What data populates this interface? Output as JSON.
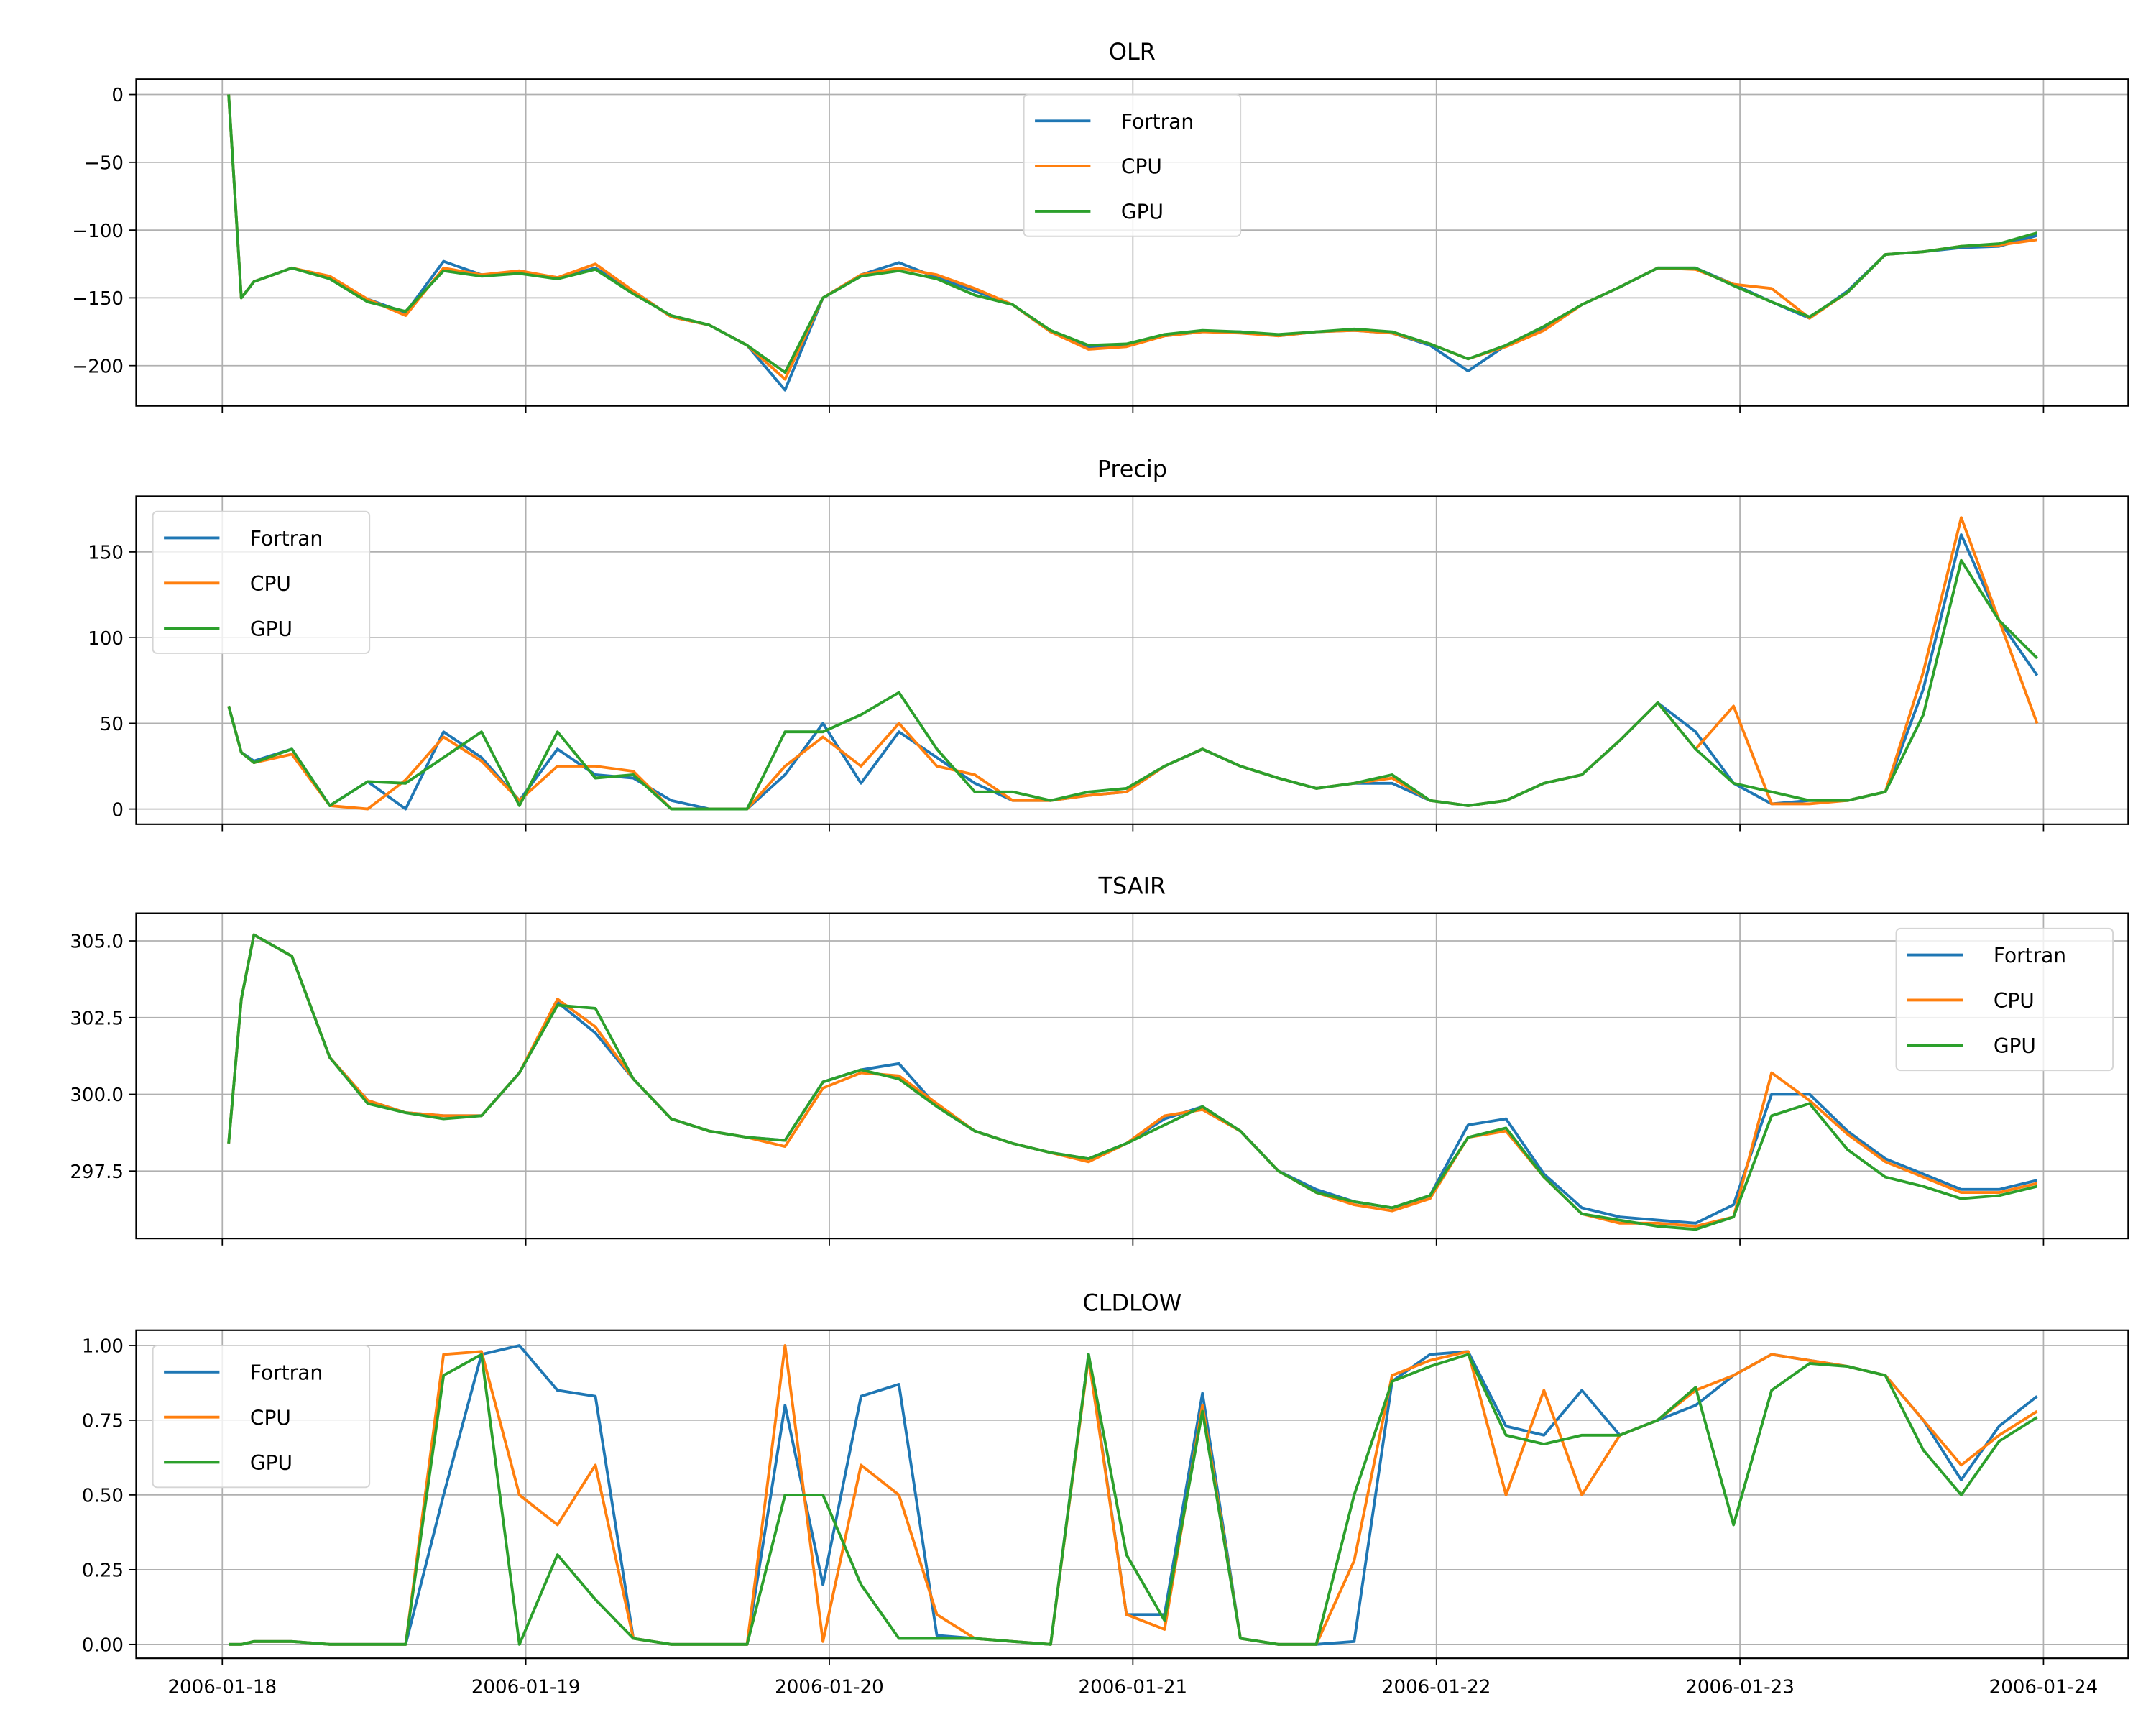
{
  "chart_data": [
    {
      "type": "line",
      "title": "OLR",
      "ylim": [
        -229.7,
        11.3
      ],
      "grid": true,
      "legend": "top-center",
      "yticks": [
        0,
        -50,
        -100,
        -150,
        -200
      ],
      "ytick_labels": [
        "0",
        "−50",
        "−100",
        "−150",
        "−200"
      ],
      "series": [
        {
          "name": "Fortran",
          "color": "#1f77b4",
          "values": [
            0,
            -150,
            -138,
            -128,
            -135,
            -151,
            -161,
            -123,
            -133,
            -131,
            -135,
            -128,
            -145,
            -164,
            -170,
            -185,
            -218,
            -150,
            -133,
            -124,
            -135,
            -145,
            -155,
            -175,
            -186,
            -185,
            -178,
            -175,
            -175,
            -178,
            -175,
            -174,
            -176,
            -185,
            -204,
            -185,
            -172,
            -155,
            -142,
            -128,
            -128,
            -140,
            -153,
            -165,
            -145,
            -118,
            -116,
            -113,
            -112,
            -104
          ]
        },
        {
          "name": "CPU",
          "color": "#ff7f0e",
          "values": [
            0,
            -150,
            -138,
            -128,
            -134,
            -151,
            -163,
            -128,
            -133,
            -130,
            -135,
            -125,
            -145,
            -164,
            -170,
            -185,
            -210,
            -150,
            -133,
            -128,
            -133,
            -143,
            -155,
            -175,
            -188,
            -186,
            -178,
            -175,
            -176,
            -178,
            -175,
            -174,
            -176,
            -184,
            -195,
            -186,
            -174,
            -155,
            -142,
            -128,
            -129,
            -140,
            -143,
            -165,
            -146,
            -118,
            -116,
            -112,
            -111,
            -107
          ]
        },
        {
          "name": "GPU",
          "color": "#2ca02c",
          "values": [
            0,
            -150,
            -138,
            -128,
            -136,
            -153,
            -160,
            -130,
            -134,
            -132,
            -136,
            -129,
            -147,
            -163,
            -170,
            -185,
            -205,
            -150,
            -134,
            -130,
            -136,
            -148,
            -155,
            -174,
            -185,
            -184,
            -177,
            -174,
            -175,
            -177,
            -175,
            -173,
            -175,
            -184,
            -195,
            -185,
            -171,
            -155,
            -142,
            -128,
            -128,
            -141,
            -153,
            -164,
            -146,
            -118,
            -116,
            -112,
            -110,
            -102
          ]
        }
      ]
    },
    {
      "type": "line",
      "title": "Precip",
      "ylim": [
        -8.9,
        182.5
      ],
      "grid": true,
      "legend": "top-left",
      "yticks": [
        0,
        50,
        100,
        150
      ],
      "ytick_labels": [
        "0",
        "50",
        "100",
        "150"
      ],
      "series": [
        {
          "name": "Fortran",
          "color": "#1f77b4",
          "values": [
            60,
            33,
            28,
            35,
            2,
            16,
            0,
            45,
            30,
            5,
            35,
            20,
            18,
            5,
            0,
            0,
            20,
            50,
            15,
            45,
            30,
            15,
            5,
            5,
            8,
            10,
            25,
            35,
            25,
            18,
            12,
            15,
            15,
            5,
            2,
            5,
            15,
            20,
            40,
            62,
            45,
            15,
            3,
            5,
            5,
            10,
            70,
            160,
            110,
            78
          ]
        },
        {
          "name": "CPU",
          "color": "#ff7f0e",
          "values": [
            60,
            33,
            27,
            32,
            2,
            0,
            17,
            42,
            28,
            5,
            25,
            25,
            22,
            0,
            0,
            0,
            25,
            42,
            25,
            50,
            25,
            20,
            5,
            5,
            8,
            10,
            25,
            35,
            25,
            18,
            12,
            15,
            18,
            5,
            2,
            5,
            15,
            20,
            40,
            62,
            35,
            60,
            3,
            3,
            5,
            10,
            80,
            170,
            110,
            50
          ]
        },
        {
          "name": "GPU",
          "color": "#2ca02c",
          "values": [
            60,
            33,
            27,
            35,
            2,
            16,
            15,
            30,
            45,
            2,
            45,
            18,
            20,
            0,
            0,
            0,
            45,
            45,
            55,
            68,
            35,
            10,
            10,
            5,
            10,
            12,
            25,
            35,
            25,
            18,
            12,
            15,
            20,
            5,
            2,
            5,
            15,
            20,
            40,
            62,
            35,
            15,
            10,
            5,
            5,
            10,
            55,
            145,
            110,
            88
          ]
        }
      ]
    },
    {
      "type": "line",
      "title": "TSAIR",
      "ylim": [
        295.3,
        305.9
      ],
      "grid": true,
      "legend": "top-right",
      "yticks": [
        305.0,
        302.5,
        300.0,
        297.5
      ],
      "ytick_labels": [
        "305.0",
        "302.5",
        "300.0",
        "297.5"
      ],
      "series": [
        {
          "name": "Fortran",
          "color": "#1f77b4",
          "values": [
            298.4,
            303.1,
            305.2,
            304.5,
            301.2,
            299.8,
            299.4,
            299.3,
            299.3,
            300.7,
            303.0,
            302.0,
            300.5,
            299.2,
            298.8,
            298.6,
            298.5,
            300.4,
            300.8,
            301.0,
            299.6,
            298.8,
            298.4,
            298.1,
            297.9,
            298.4,
            299.2,
            299.6,
            298.8,
            297.5,
            296.9,
            296.5,
            296.3,
            296.7,
            299.0,
            299.2,
            297.4,
            296.3,
            296.0,
            295.9,
            295.8,
            296.4,
            300.0,
            300.0,
            298.8,
            297.9,
            297.4,
            296.9,
            296.9,
            297.2
          ]
        },
        {
          "name": "CPU",
          "color": "#ff7f0e",
          "values": [
            298.4,
            303.1,
            305.2,
            304.5,
            301.2,
            299.8,
            299.4,
            299.3,
            299.3,
            300.7,
            303.1,
            302.2,
            300.5,
            299.2,
            298.8,
            298.6,
            298.3,
            300.2,
            300.7,
            300.6,
            299.7,
            298.8,
            298.4,
            298.1,
            297.8,
            298.4,
            299.3,
            299.5,
            298.8,
            297.5,
            296.8,
            296.4,
            296.2,
            296.6,
            298.6,
            298.8,
            297.3,
            296.1,
            295.8,
            295.8,
            295.7,
            296.0,
            300.7,
            299.8,
            298.7,
            297.8,
            297.3,
            296.8,
            296.8,
            297.1
          ]
        },
        {
          "name": "GPU",
          "color": "#2ca02c",
          "values": [
            298.4,
            303.1,
            305.2,
            304.5,
            301.2,
            299.7,
            299.4,
            299.2,
            299.3,
            300.7,
            302.9,
            302.8,
            300.5,
            299.2,
            298.8,
            298.6,
            298.5,
            300.4,
            300.8,
            300.5,
            299.6,
            298.8,
            298.4,
            298.1,
            297.9,
            298.4,
            299.0,
            299.6,
            298.8,
            297.5,
            296.8,
            296.5,
            296.3,
            296.7,
            298.6,
            298.9,
            297.3,
            296.1,
            295.9,
            295.7,
            295.6,
            296.0,
            299.3,
            299.7,
            298.2,
            297.3,
            297.0,
            296.6,
            296.7,
            297.0
          ]
        }
      ]
    },
    {
      "type": "line",
      "title": "CLDLOW",
      "ylim": [
        -0.0465,
        1.051
      ],
      "grid": true,
      "legend": "top-left",
      "yticks": [
        0,
        0.25,
        0.5,
        0.75,
        1.0
      ],
      "ytick_labels": [
        "0.00",
        "0.25",
        "0.50",
        "0.75",
        "1.00"
      ],
      "series": [
        {
          "name": "Fortran",
          "color": "#1f77b4",
          "values": [
            0,
            0,
            0.01,
            0.01,
            0,
            0,
            0,
            0.5,
            0.97,
            1.0,
            0.85,
            0.83,
            0.02,
            0,
            0,
            0,
            0.8,
            0.2,
            0.83,
            0.87,
            0.03,
            0.02,
            0.01,
            0,
            0.97,
            0.1,
            0.1,
            0.84,
            0.02,
            0,
            0,
            0.01,
            0.88,
            0.97,
            0.98,
            0.73,
            0.7,
            0.85,
            0.7,
            0.75,
            0.8,
            0.9,
            0.97,
            0.95,
            0.93,
            0.9,
            0.75,
            0.55,
            0.73,
            0.83
          ]
        },
        {
          "name": "CPU",
          "color": "#ff7f0e",
          "values": [
            0,
            0,
            0.01,
            0.01,
            0,
            0,
            0,
            0.97,
            0.98,
            0.5,
            0.4,
            0.6,
            0.02,
            0,
            0,
            0,
            1.0,
            0.01,
            0.6,
            0.5,
            0.1,
            0.02,
            0.01,
            0,
            0.96,
            0.1,
            0.05,
            0.8,
            0.02,
            0,
            0,
            0.28,
            0.9,
            0.95,
            0.98,
            0.5,
            0.85,
            0.5,
            0.7,
            0.75,
            0.85,
            0.9,
            0.97,
            0.95,
            0.93,
            0.9,
            0.75,
            0.6,
            0.7,
            0.78
          ]
        },
        {
          "name": "GPU",
          "color": "#2ca02c",
          "values": [
            0,
            0,
            0.01,
            0.01,
            0,
            0,
            0,
            0.9,
            0.97,
            0.0,
            0.3,
            0.15,
            0.02,
            0,
            0,
            0,
            0.5,
            0.5,
            0.2,
            0.02,
            0.02,
            0.02,
            0.01,
            0,
            0.97,
            0.3,
            0.08,
            0.78,
            0.02,
            0,
            0,
            0.5,
            0.88,
            0.93,
            0.97,
            0.7,
            0.67,
            0.7,
            0.7,
            0.75,
            0.86,
            0.4,
            0.85,
            0.94,
            0.93,
            0.9,
            0.65,
            0.5,
            0.68,
            0.76
          ]
        }
      ]
    }
  ],
  "x": [
    "2006-01-18 00:30",
    "2006-01-18 01:30",
    "2006-01-18 02:30",
    "2006-01-18 05:30",
    "2006-01-18 08:30",
    "2006-01-18 11:30",
    "2006-01-18 14:30",
    "2006-01-18 17:30",
    "2006-01-18 20:30",
    "2006-01-18 23:30",
    "2006-01-19 02:30",
    "2006-01-19 05:30",
    "2006-01-19 08:30",
    "2006-01-19 11:30",
    "2006-01-19 14:30",
    "2006-01-19 17:30",
    "2006-01-19 20:30",
    "2006-01-19 23:30",
    "2006-01-20 02:30",
    "2006-01-20 05:30",
    "2006-01-20 08:30",
    "2006-01-20 11:30",
    "2006-01-20 14:30",
    "2006-01-20 17:30",
    "2006-01-20 20:30",
    "2006-01-20 23:30",
    "2006-01-21 02:30",
    "2006-01-21 05:30",
    "2006-01-21 08:30",
    "2006-01-21 11:30",
    "2006-01-21 14:30",
    "2006-01-21 17:30",
    "2006-01-21 20:30",
    "2006-01-21 23:30",
    "2006-01-22 02:30",
    "2006-01-22 05:30",
    "2006-01-22 08:30",
    "2006-01-22 11:30",
    "2006-01-22 14:30",
    "2006-01-22 17:30",
    "2006-01-22 20:30",
    "2006-01-22 23:30",
    "2006-01-23 02:30",
    "2006-01-23 05:30",
    "2006-01-23 08:30",
    "2006-01-23 11:30",
    "2006-01-23 14:30",
    "2006-01-23 17:30",
    "2006-01-23 20:30",
    "2006-01-23 23:30"
  ],
  "xticks": [
    "2006-01-18",
    "2006-01-19",
    "2006-01-20",
    "2006-01-21",
    "2006-01-22",
    "2006-01-23",
    "2006-01-24"
  ],
  "legend_labels": [
    "Fortran",
    "CPU",
    "GPU"
  ]
}
